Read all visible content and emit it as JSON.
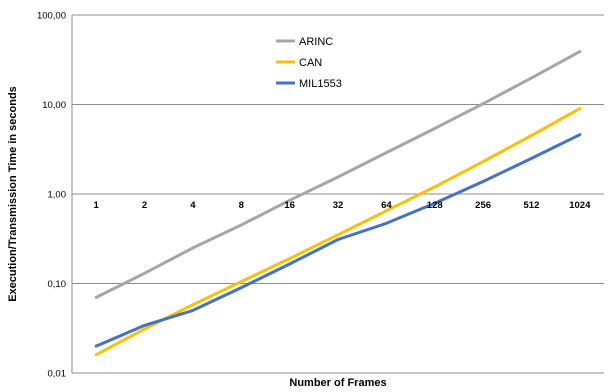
{
  "chart_data": {
    "type": "line",
    "title": "",
    "xlabel": "Number of Frames",
    "ylabel": "Execution/Transmission Time in seconds",
    "categories": [
      "1",
      "2",
      "4",
      "8",
      "16",
      "32",
      "64",
      "128",
      "256",
      "512",
      "1024"
    ],
    "yscale": "log",
    "ylim": [
      0.01,
      100
    ],
    "y_ticks": [
      "0,01",
      "0,10",
      "1,00",
      "10,00",
      "100,00"
    ],
    "grid": "horizontal",
    "legend_position": "top-center-inside",
    "series": [
      {
        "name": "ARINC",
        "color": "#A6A6A6",
        "values": [
          0.07,
          0.13,
          0.25,
          0.45,
          0.85,
          1.55,
          2.9,
          5.4,
          10.2,
          19.8,
          39
        ]
      },
      {
        "name": "CAN",
        "color": "#FFC000",
        "values": [
          0.016,
          0.031,
          0.058,
          0.105,
          0.19,
          0.35,
          0.65,
          1.2,
          2.3,
          4.5,
          9
        ]
      },
      {
        "name": "MIL1553",
        "color": "#4472C4",
        "values": [
          0.02,
          0.034,
          0.05,
          0.09,
          0.165,
          0.31,
          0.47,
          0.79,
          1.38,
          2.5,
          4.6
        ]
      }
    ]
  }
}
